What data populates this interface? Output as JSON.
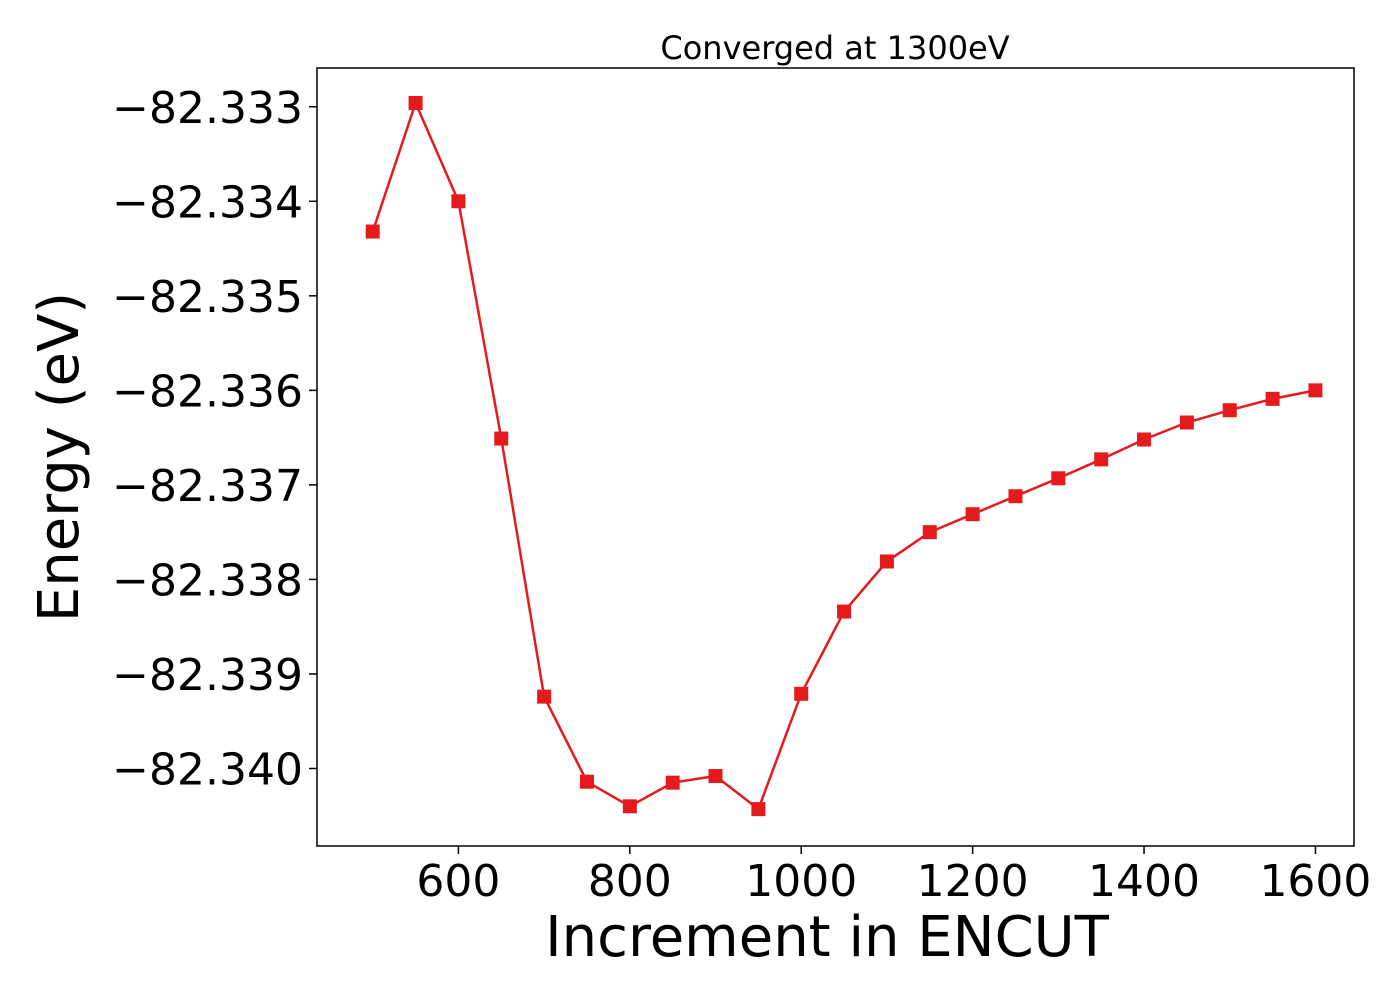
{
  "chart_data": {
    "type": "line",
    "title": "Converged at 1300eV",
    "xlabel": "Increment in ENCUT",
    "ylabel": "Energy (eV)",
    "xlim": [
      435,
      1645
    ],
    "ylim": [
      -82.34082,
      -82.33259
    ],
    "x_ticks": [
      600,
      800,
      1000,
      1200,
      1400,
      1600
    ],
    "x_tick_labels": [
      "600",
      "800",
      "1000",
      "1200",
      "1400",
      "1600"
    ],
    "y_ticks": [
      -82.333,
      -82.334,
      -82.335,
      -82.336,
      -82.337,
      -82.338,
      -82.339,
      -82.34
    ],
    "y_tick_labels": [
      "−82.333",
      "−82.334",
      "−82.335",
      "−82.336",
      "−82.337",
      "−82.338",
      "−82.339",
      "−82.340"
    ],
    "grid": false,
    "series": [
      {
        "color": "#e41a1c",
        "marker": "square",
        "x": [
          500,
          550,
          600,
          650,
          700,
          750,
          800,
          850,
          900,
          950,
          1000,
          1050,
          1100,
          1150,
          1200,
          1250,
          1300,
          1350,
          1400,
          1450,
          1500,
          1550,
          1600
        ],
        "y": [
          -82.33432,
          -82.33296,
          -82.334,
          -82.33651,
          -82.33924,
          -82.34014,
          -82.3404,
          -82.34015,
          -82.34008,
          -82.34043,
          -82.33921,
          -82.33834,
          -82.33781,
          -82.3375,
          -82.33731,
          -82.33712,
          -82.33693,
          -82.33673,
          -82.33652,
          -82.33634,
          -82.33621,
          -82.33609,
          -82.336
        ]
      }
    ]
  }
}
